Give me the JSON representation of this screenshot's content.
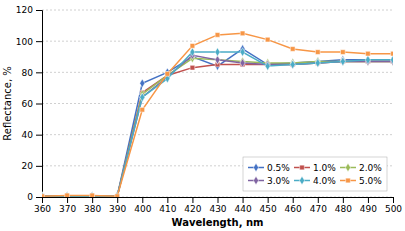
{
  "chart_data": {
    "type": "line",
    "xlabel": "Wavelength, nm",
    "ylabel": "Reflectance, %",
    "x": [
      360,
      370,
      380,
      390,
      400,
      410,
      420,
      430,
      440,
      450,
      460,
      470,
      480,
      490,
      500
    ],
    "series": [
      {
        "name": "0.5%",
        "color": "#4472C4",
        "marker": "diamond",
        "values": [
          0.5,
          0.5,
          0.5,
          0.5,
          73,
          80,
          90,
          84,
          95,
          85,
          86,
          87,
          88,
          88,
          88
        ]
      },
      {
        "name": "1.0%",
        "color": "#C0504D",
        "marker": "square",
        "values": [
          0.5,
          0.5,
          0.5,
          0.5,
          67,
          78,
          83,
          85,
          85,
          85,
          85,
          86,
          87,
          87,
          87
        ]
      },
      {
        "name": "2.0%",
        "color": "#9BBB59",
        "marker": "diamond",
        "values": [
          0.5,
          0.5,
          0.5,
          0.5,
          66,
          78,
          89,
          88,
          87,
          86,
          86,
          87,
          87,
          87,
          87
        ]
      },
      {
        "name": "3.0%",
        "color": "#8064A2",
        "marker": "diamond",
        "values": [
          0.5,
          0.5,
          0.5,
          0.5,
          64,
          77,
          91,
          88,
          86,
          85,
          85,
          86,
          87,
          87,
          87
        ]
      },
      {
        "name": "4.0%",
        "color": "#4BACC6",
        "marker": "diamond",
        "values": [
          0.5,
          0.5,
          0.5,
          0.5,
          64,
          76,
          93,
          93,
          93,
          84,
          85,
          86,
          87,
          88,
          88
        ]
      },
      {
        "name": "5.0%",
        "color": "#F79646",
        "marker": "square",
        "values": [
          0.5,
          1.0,
          1.0,
          0.5,
          56,
          79,
          97,
          104,
          105,
          101,
          95,
          93,
          93,
          92,
          92
        ]
      }
    ],
    "xlim": [
      360,
      500
    ],
    "ylim": [
      0,
      120
    ],
    "xticks": [
      360,
      370,
      380,
      390,
      400,
      410,
      420,
      430,
      440,
      450,
      460,
      470,
      480,
      490,
      500
    ],
    "yticks": [
      0,
      20,
      40,
      60,
      80,
      100,
      120
    ],
    "grid": "y",
    "legend": "lower right"
  }
}
